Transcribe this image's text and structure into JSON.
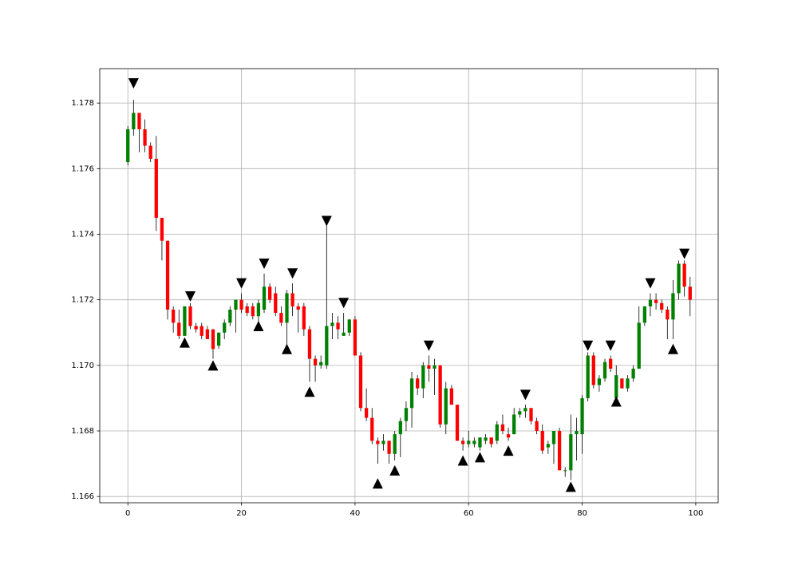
{
  "chart_data": {
    "type": "candlestick",
    "x": [
      0,
      1,
      2,
      3,
      4,
      5,
      6,
      7,
      8,
      9,
      10,
      11,
      12,
      13,
      14,
      15,
      16,
      17,
      18,
      19,
      20,
      21,
      22,
      23,
      24,
      25,
      26,
      27,
      28,
      29,
      30,
      31,
      32,
      33,
      34,
      35,
      36,
      37,
      38,
      39,
      40,
      41,
      42,
      43,
      44,
      45,
      46,
      47,
      48,
      49,
      50,
      51,
      52,
      53,
      54,
      55,
      56,
      57,
      58,
      59,
      60,
      61,
      62,
      63,
      64,
      65,
      66,
      67,
      68,
      69,
      70,
      71,
      72,
      73,
      74,
      75,
      76,
      77,
      78,
      79,
      80,
      81,
      82,
      83,
      84,
      85,
      86,
      87,
      88,
      89,
      90,
      91,
      92,
      93,
      94,
      95,
      96,
      97,
      98,
      99
    ],
    "open": [
      1.1762,
      1.1772,
      1.1777,
      1.1772,
      1.1767,
      1.1763,
      1.1745,
      1.1738,
      1.1717,
      1.1713,
      1.1709,
      1.1718,
      1.1712,
      1.1712,
      1.1711,
      1.1711,
      1.1706,
      1.171,
      1.1713,
      1.1717,
      1.172,
      1.1718,
      1.1718,
      1.1715,
      1.1717,
      1.1724,
      1.1722,
      1.1716,
      1.1713,
      1.1722,
      1.1718,
      1.1718,
      1.1711,
      1.1702,
      1.17,
      1.17,
      1.1712,
      1.1713,
      1.1709,
      1.171,
      1.1714,
      1.1703,
      1.1687,
      1.1684,
      1.1677,
      1.1676,
      1.1677,
      1.1673,
      1.1679,
      1.1683,
      1.1687,
      1.1696,
      1.1693,
      1.17,
      1.1699,
      1.17,
      1.1682,
      1.1693,
      1.1688,
      1.1677,
      1.1676,
      1.1676,
      1.1675,
      1.1677,
      1.1678,
      1.1677,
      1.1682,
      1.1679,
      1.1679,
      1.1685,
      1.1686,
      1.1687,
      1.1683,
      1.168,
      1.1675,
      1.1676,
      1.168,
      1.1668,
      1.1668,
      1.1679,
      1.1679,
      1.169,
      1.1703,
      1.1694,
      1.1696,
      1.1702,
      1.169,
      1.1696,
      1.1693,
      1.1696,
      1.1699,
      1.1713,
      1.1718,
      1.172,
      1.1719,
      1.1717,
      1.1714,
      1.1722,
      1.1731,
      1.1724
    ],
    "high": [
      1.1773,
      1.1781,
      1.1777,
      1.1775,
      1.1768,
      1.177,
      1.1745,
      1.1738,
      1.1718,
      1.1717,
      1.1718,
      1.1719,
      1.1713,
      1.1713,
      1.1712,
      1.1711,
      1.171,
      1.1714,
      1.1718,
      1.172,
      1.1722,
      1.1719,
      1.1719,
      1.172,
      1.1728,
      1.1725,
      1.1724,
      1.1718,
      1.1723,
      1.1725,
      1.1719,
      1.1719,
      1.1712,
      1.1703,
      1.1703,
      1.1743,
      1.1716,
      1.1715,
      1.1716,
      1.1714,
      1.1715,
      1.1704,
      1.1693,
      1.1687,
      1.1678,
      1.1679,
      1.1677,
      1.168,
      1.1684,
      1.1689,
      1.1698,
      1.1697,
      1.1701,
      1.1703,
      1.1702,
      1.17,
      1.1695,
      1.1694,
      1.1688,
      1.1678,
      1.168,
      1.1678,
      1.1678,
      1.1679,
      1.1678,
      1.1683,
      1.1685,
      1.1681,
      1.1687,
      1.1687,
      1.1688,
      1.1687,
      1.1684,
      1.1682,
      1.1677,
      1.168,
      1.1681,
      1.1669,
      1.1685,
      1.1684,
      1.1691,
      1.1704,
      1.1704,
      1.1697,
      1.1702,
      1.1703,
      1.17,
      1.1696,
      1.1697,
      1.17,
      1.1718,
      1.1718,
      1.1722,
      1.1722,
      1.172,
      1.1718,
      1.1726,
      1.1732,
      1.1732,
      1.1727
    ],
    "low": [
      1.1761,
      1.177,
      1.1765,
      1.1765,
      1.1762,
      1.1741,
      1.1732,
      1.1714,
      1.171,
      1.1708,
      1.1709,
      1.1711,
      1.171,
      1.1708,
      1.1708,
      1.1702,
      1.1705,
      1.1708,
      1.1712,
      1.171,
      1.1716,
      1.1715,
      1.1714,
      1.1713,
      1.1716,
      1.1719,
      1.1715,
      1.1712,
      1.1706,
      1.1715,
      1.171,
      1.1709,
      1.1695,
      1.1695,
      1.1699,
      1.1699,
      1.1708,
      1.1708,
      1.1709,
      1.1709,
      1.1703,
      1.1686,
      1.1683,
      1.1676,
      1.167,
      1.1674,
      1.167,
      1.1671,
      1.1672,
      1.168,
      1.1681,
      1.1691,
      1.169,
      1.1695,
      1.1691,
      1.1681,
      1.1679,
      1.1688,
      1.1677,
      1.1674,
      1.1675,
      1.1675,
      1.1674,
      1.1676,
      1.1675,
      1.1676,
      1.1679,
      1.1677,
      1.1679,
      1.1684,
      1.1684,
      1.1682,
      1.1679,
      1.1673,
      1.1673,
      1.167,
      1.1668,
      1.1666,
      1.1665,
      1.1671,
      1.1673,
      1.1689,
      1.1693,
      1.1692,
      1.1695,
      1.1698,
      1.169,
      1.1693,
      1.1692,
      1.1695,
      1.1699,
      1.1712,
      1.1715,
      1.1717,
      1.1716,
      1.1708,
      1.1708,
      1.172,
      1.1721,
      1.1715
    ],
    "close": [
      1.1772,
      1.1777,
      1.1772,
      1.1767,
      1.1763,
      1.1745,
      1.1738,
      1.1717,
      1.1713,
      1.1709,
      1.1718,
      1.1712,
      1.1711,
      1.1709,
      1.1708,
      1.1705,
      1.171,
      1.1713,
      1.1717,
      1.172,
      1.1717,
      1.1716,
      1.1715,
      1.1719,
      1.1724,
      1.172,
      1.1716,
      1.1713,
      1.1722,
      1.1718,
      1.1717,
      1.1711,
      1.1702,
      1.17,
      1.1701,
      1.1712,
      1.1713,
      1.1711,
      1.171,
      1.1714,
      1.1703,
      1.1687,
      1.1684,
      1.1677,
      1.1676,
      1.1677,
      1.1673,
      1.1679,
      1.1683,
      1.1687,
      1.1696,
      1.1693,
      1.17,
      1.1699,
      1.17,
      1.1682,
      1.1693,
      1.1688,
      1.1677,
      1.1676,
      1.1677,
      1.1677,
      1.1678,
      1.1678,
      1.1676,
      1.1682,
      1.168,
      1.1678,
      1.1685,
      1.1686,
      1.1687,
      1.1683,
      1.168,
      1.1674,
      1.1676,
      1.168,
      1.1668,
      1.1668,
      1.1679,
      1.168,
      1.169,
      1.1703,
      1.1694,
      1.1696,
      1.1701,
      1.1699,
      1.1697,
      1.1693,
      1.1696,
      1.1699,
      1.1713,
      1.1718,
      1.172,
      1.1719,
      1.1717,
      1.1714,
      1.1722,
      1.1731,
      1.1724,
      1.172
    ],
    "up_color": "green",
    "down_color": "red",
    "wick_color": "black",
    "marker_color": "black",
    "markers_down": {
      "x": [
        1,
        11,
        20,
        24,
        29,
        35,
        38,
        53,
        70,
        81,
        85,
        92,
        98
      ],
      "y": [
        1.1786,
        1.1721,
        1.1725,
        1.1731,
        1.1728,
        1.1744,
        1.1719,
        1.1706,
        1.1691,
        1.1706,
        1.1706,
        1.1725,
        1.1734
      ]
    },
    "markers_up": {
      "x": [
        10,
        15,
        23,
        28,
        32,
        44,
        47,
        59,
        62,
        67,
        78,
        86,
        96
      ],
      "y": [
        1.1707,
        1.17,
        1.1712,
        1.1705,
        1.1692,
        1.1664,
        1.1668,
        1.1671,
        1.1672,
        1.1674,
        1.1663,
        1.1689,
        1.1705
      ]
    },
    "xlim": [
      -4.95,
      103.95
    ],
    "ylim": [
      1.16581,
      1.17905
    ],
    "xticks": [
      0,
      20,
      40,
      60,
      80,
      100
    ],
    "yticks": [
      1.166,
      1.168,
      {
        "value": 1.17,
        "label": "1.170"
      },
      1.172,
      1.174,
      1.176,
      1.178
    ],
    "grid": true
  }
}
